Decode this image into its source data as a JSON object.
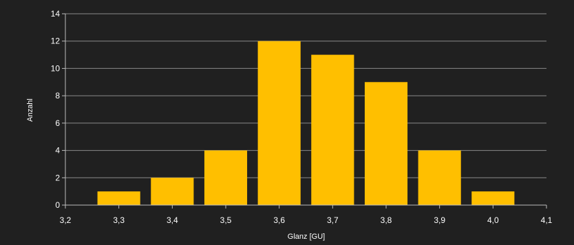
{
  "chart_data": {
    "type": "bar",
    "title": "",
    "xlabel": "Glanz [GU]",
    "ylabel": "Anzahl",
    "categories": [
      "3,3",
      "3,4",
      "3,5",
      "3,6",
      "3,7",
      "3,8",
      "3,9",
      "4,0"
    ],
    "x": [
      3.3,
      3.4,
      3.5,
      3.6,
      3.7,
      3.8,
      3.9,
      4.0
    ],
    "values": [
      1,
      2,
      4,
      12,
      11,
      9,
      4,
      1
    ],
    "xlim": [
      3.2,
      4.1
    ],
    "ylim": [
      0,
      14
    ],
    "x_ticks": [
      "3,2",
      "3,3",
      "3,4",
      "3,5",
      "3,6",
      "3,7",
      "3,8",
      "3,9",
      "4,0",
      "4,1"
    ],
    "y_ticks": [
      "0",
      "2",
      "4",
      "6",
      "8",
      "10",
      "12",
      "14"
    ],
    "grid": true,
    "legend": "none",
    "colors": {
      "background": "#202020",
      "bar": "#ffbf00",
      "grid": "#8a8a8a",
      "text": "#ffffff"
    }
  }
}
